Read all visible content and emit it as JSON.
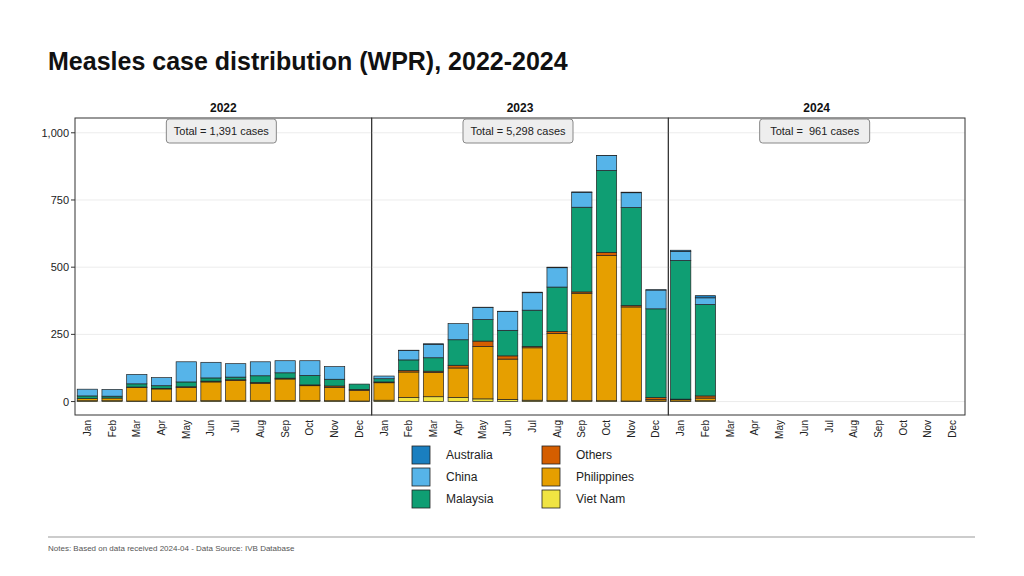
{
  "title": "Measles case distribution (WPR), 2022-2024",
  "note": "Notes: Based on data received 2024-04 - Data Source: IVB Database",
  "chart_data": [
    {
      "type": "bar",
      "stacked": true,
      "grid": true,
      "legend": "bottom",
      "title": "2022",
      "annotation": "Total = 1,391 cases",
      "categories": [
        "Jan",
        "Feb",
        "Mar",
        "Apr",
        "May",
        "Jun",
        "Jul",
        "Aug",
        "Sep",
        "Oct",
        "Nov",
        "Dec"
      ],
      "ylim": [
        -50,
        1055
      ],
      "yticks": [
        0,
        250,
        500,
        750,
        {
          "value": 1000,
          "label": "1,000"
        }
      ],
      "series": [
        {
          "name": "Viet Nam",
          "color": "#f0e442",
          "values": [
            3,
            3,
            2,
            2,
            2,
            3,
            3,
            3,
            4,
            4,
            3,
            2
          ]
        },
        {
          "name": "Philippines",
          "color": "#e69f00",
          "values": [
            8,
            10,
            50,
            45,
            50,
            70,
            75,
            65,
            80,
            55,
            50,
            40
          ]
        },
        {
          "name": "Others",
          "color": "#d55e00",
          "values": [
            0,
            0,
            2,
            2,
            3,
            3,
            3,
            3,
            3,
            3,
            5,
            3
          ]
        },
        {
          "name": "Malaysia",
          "color": "#0f9e73",
          "values": [
            10,
            7,
            12,
            10,
            18,
            12,
            10,
            25,
            20,
            35,
            25,
            20
          ]
        },
        {
          "name": "China",
          "color": "#56b4e9",
          "values": [
            25,
            25,
            35,
            30,
            75,
            58,
            50,
            52,
            45,
            55,
            47,
            0
          ]
        },
        {
          "name": "Australia",
          "color": "#1a7fc0",
          "values": [
            0,
            0,
            0,
            0,
            0,
            0,
            0,
            0,
            0,
            0,
            0,
            0
          ]
        }
      ]
    },
    {
      "type": "bar",
      "stacked": true,
      "grid": true,
      "tick_labels": "x",
      "title": "2023",
      "annotation": "Total = 5,298 cases",
      "categories": [
        "Jan",
        "Feb",
        "Mar",
        "Apr",
        "May",
        "Jun",
        "Jul",
        "Aug",
        "Sep",
        "Oct",
        "Nov",
        "Dec"
      ],
      "ylim": [
        -50,
        1055
      ],
      "yticks": [
        0,
        250,
        500,
        750,
        {
          "value": 1000,
          "label": "1,000"
        }
      ],
      "series": [
        {
          "name": "Viet Nam",
          "color": "#f0e442",
          "values": [
            5,
            15,
            18,
            15,
            10,
            8,
            5,
            3,
            3,
            3,
            2,
            2
          ]
        },
        {
          "name": "Philippines",
          "color": "#e69f00",
          "values": [
            65,
            95,
            90,
            110,
            195,
            150,
            195,
            250,
            400,
            540,
            350,
            5
          ]
        },
        {
          "name": "Others",
          "color": "#d55e00",
          "values": [
            3,
            5,
            5,
            10,
            20,
            12,
            5,
            8,
            5,
            12,
            5,
            8
          ]
        },
        {
          "name": "Malaysia",
          "color": "#0f9e73",
          "values": [
            12,
            40,
            50,
            95,
            80,
            95,
            135,
            165,
            315,
            305,
            365,
            330
          ]
        },
        {
          "name": "China",
          "color": "#56b4e9",
          "values": [
            10,
            35,
            50,
            60,
            45,
            70,
            65,
            72,
            55,
            55,
            55,
            70
          ]
        },
        {
          "name": "Australia",
          "color": "#1a7fc0",
          "values": [
            0,
            1,
            2,
            0,
            1,
            1,
            2,
            2,
            2,
            1,
            2,
            1
          ]
        }
      ]
    },
    {
      "type": "bar",
      "stacked": true,
      "grid": true,
      "tick_labels": "x",
      "title": "2024",
      "annotation": "Total =  961 cases",
      "categories": [
        "Jan",
        "Feb",
        "Mar",
        "Apr",
        "May",
        "Jun",
        "Jul",
        "Aug",
        "Sep",
        "Oct",
        "Nov",
        "Dec"
      ],
      "ylim": [
        -50,
        1055
      ],
      "yticks": [
        0,
        250,
        500,
        750,
        {
          "value": 1000,
          "label": "1,000"
        }
      ],
      "series": [
        {
          "name": "Viet Nam",
          "color": "#f0e442",
          "values": [
            2,
            3,
            0,
            0,
            0,
            0,
            0,
            0,
            0,
            0,
            0,
            0
          ]
        },
        {
          "name": "Philippines",
          "color": "#e69f00",
          "values": [
            5,
            10,
            0,
            0,
            0,
            0,
            0,
            0,
            0,
            0,
            0,
            0
          ]
        },
        {
          "name": "Others",
          "color": "#d55e00",
          "values": [
            2,
            8,
            0,
            0,
            0,
            0,
            0,
            0,
            0,
            0,
            0,
            0
          ]
        },
        {
          "name": "Malaysia",
          "color": "#0f9e73",
          "values": [
            516,
            340,
            0,
            0,
            0,
            0,
            0,
            0,
            0,
            0,
            0,
            0
          ]
        },
        {
          "name": "China",
          "color": "#56b4e9",
          "values": [
            33,
            25,
            0,
            0,
            0,
            0,
            0,
            0,
            0,
            0,
            0,
            0
          ]
        },
        {
          "name": "Australia",
          "color": "#1a7fc0",
          "values": [
            5,
            8,
            0,
            0,
            0,
            0,
            0,
            0,
            0,
            0,
            0,
            0
          ]
        }
      ]
    }
  ]
}
